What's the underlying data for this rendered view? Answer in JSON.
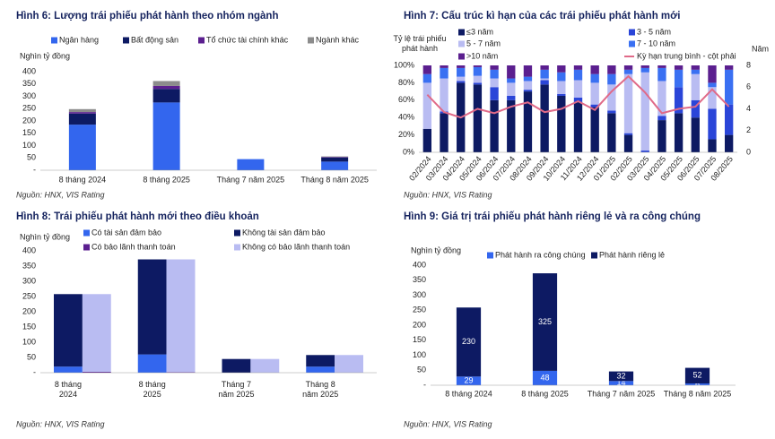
{
  "chart_data": [
    {
      "type": "bar",
      "stacked": true,
      "title": "Hình 6: Lượng trái phiếu phát hành theo nhóm ngành",
      "y_label": "Nghìn tỷ đồng",
      "source": "Nguồn: HNX, VIS Rating",
      "categories": [
        "8 tháng 2024",
        "8 tháng 2025",
        "Tháng 7 năm 2025",
        "Tháng 8 năm 2025"
      ],
      "series": [
        {
          "name": "Ngân hàng",
          "color": "#3366ee",
          "values": [
            185,
            275,
            45,
            35
          ]
        },
        {
          "name": "Bất động sản",
          "color": "#0d1a63",
          "values": [
            45,
            55,
            0,
            17
          ]
        },
        {
          "name": "Tổ chức tài chính khác",
          "color": "#5b1f8f",
          "values": [
            6,
            12,
            0,
            2
          ]
        },
        {
          "name": "Ngành khác",
          "color": "#8c8c8c",
          "values": [
            12,
            20,
            0,
            2
          ]
        }
      ],
      "ylim": [
        0,
        400
      ],
      "yticks": [
        {
          "value": 0,
          "label": "-"
        },
        50,
        100,
        150,
        200,
        250,
        300,
        350,
        400
      ]
    },
    {
      "type": "bar",
      "stacked": true,
      "title": "Hình 7: Cấu trúc kì hạn của các trái phiếu phát hành mới",
      "y_label": "Tỷ lệ trái phiếu phát hành",
      "y2_label": "Năm",
      "source": "Nguồn: HNX, VIS Rating",
      "categories": [
        "02/2024",
        "03/2024",
        "04/2024",
        "05/2024",
        "06/2024",
        "07/2024",
        "08/2024",
        "09/2024",
        "10/2024",
        "11/2024",
        "12/2024",
        "01/2025",
        "02/2025",
        "03/2025",
        "04/2025",
        "05/2025",
        "06/2025",
        "07/2025",
        "08/2025"
      ],
      "series": [
        {
          "name": "≤3 năm",
          "color": "#0d1a63",
          "values": [
            27,
            45,
            80,
            78,
            60,
            60,
            70,
            78,
            65,
            58,
            52,
            45,
            20,
            0,
            37,
            45,
            40,
            15,
            20
          ]
        },
        {
          "name": "3 - 5 năm",
          "color": "#2a45d8",
          "values": [
            0,
            2,
            2,
            2,
            15,
            5,
            2,
            5,
            2,
            5,
            3,
            3,
            2,
            2,
            5,
            30,
            20,
            35,
            35
          ]
        },
        {
          "name": "5 - 7 năm",
          "color": "#b9bcf2",
          "values": [
            53,
            38,
            5,
            8,
            10,
            15,
            10,
            2,
            15,
            20,
            25,
            30,
            68,
            90,
            40,
            0,
            30,
            25,
            0
          ]
        },
        {
          "name": "7 - 10 năm",
          "color": "#3a70f2",
          "values": [
            10,
            12,
            10,
            10,
            10,
            5,
            5,
            10,
            10,
            12,
            10,
            12,
            5,
            5,
            15,
            20,
            5,
            5,
            40
          ]
        },
        {
          "name": ">10 năm",
          "color": "#5b1f8f",
          "values": [
            10,
            3,
            3,
            2,
            5,
            15,
            13,
            5,
            8,
            5,
            10,
            10,
            5,
            3,
            3,
            5,
            5,
            20,
            5
          ]
        },
        {
          "name": "Kỳ hạn trung bình - cột phải",
          "color": "#e06a88",
          "axis": "y2",
          "values": [
            5.3,
            3.7,
            3.2,
            4.0,
            3.6,
            4.2,
            4.6,
            3.7,
            4.0,
            4.7,
            3.9,
            5.6,
            7.0,
            5.5,
            3.6,
            4.0,
            4.2,
            5.8,
            4.2
          ]
        }
      ],
      "ylim": [
        0,
        100
      ],
      "yticks": [
        {
          "value": 0,
          "label": "0%"
        },
        {
          "value": 20,
          "label": "20%"
        },
        {
          "value": 40,
          "label": "40%"
        },
        {
          "value": 60,
          "label": "60%"
        },
        {
          "value": 80,
          "label": "80%"
        },
        {
          "value": 100,
          "label": "100%"
        }
      ],
      "y2lim": [
        0,
        8
      ],
      "y2ticks": [
        0,
        2,
        4,
        6,
        8
      ]
    },
    {
      "type": "bar",
      "stacked": true,
      "title": "Hình 8: Trái phiếu phát hành mới theo điều khoản",
      "y_label": "Nghìn tỷ đồng",
      "source": "Nguồn: HNX, VIS Rating",
      "categories": [
        "8 tháng 2024",
        "8 tháng 2025",
        "Tháng 7 năm 2025",
        "Tháng 8 năm 2025"
      ],
      "series": [
        {
          "name": "Có tài sản đảm bảo",
          "color": "#3366ee",
          "stack": 0,
          "values": [
            20,
            60,
            0,
            20
          ]
        },
        {
          "name": "Không tài sản đảm bảo",
          "color": "#0d1a63",
          "stack": 0,
          "values": [
            238,
            312,
            45,
            38
          ]
        },
        {
          "name": "Có bảo lãnh thanh toán",
          "color": "#5b1f8f",
          "stack": 1,
          "values": [
            3,
            2,
            0,
            0
          ]
        },
        {
          "name": "Không có bảo lãnh thanh toán",
          "color": "#b9bcf2",
          "stack": 1,
          "values": [
            255,
            370,
            45,
            58
          ]
        }
      ],
      "ylim": [
        0,
        400
      ],
      "yticks": [
        {
          "value": 0,
          "label": "-"
        },
        50,
        100,
        150,
        200,
        250,
        300,
        350,
        400
      ]
    },
    {
      "type": "bar",
      "stacked": true,
      "data_labels": true,
      "title": "Hình 9: Giá trị trái phiếu phát hành riêng lẻ và ra công chúng",
      "y_label": "Nghìn tỷ đồng",
      "source": "Nguồn: HNX, VIS Rating",
      "categories": [
        "8 tháng 2024",
        "8 tháng 2025",
        "Tháng 7 năm 2025",
        "Tháng 8 năm 2025"
      ],
      "series": [
        {
          "name": "Phát hành ra công chúng",
          "color": "#3366ee",
          "values": [
            29,
            48,
            14,
            6
          ]
        },
        {
          "name": "Phát hành riêng lẻ",
          "color": "#0d1a63",
          "values": [
            230,
            325,
            32,
            52
          ]
        }
      ],
      "ylim": [
        0,
        400
      ],
      "yticks": [
        {
          "value": 0,
          "label": "-"
        },
        50,
        100,
        150,
        200,
        250,
        300,
        350,
        400
      ]
    }
  ]
}
